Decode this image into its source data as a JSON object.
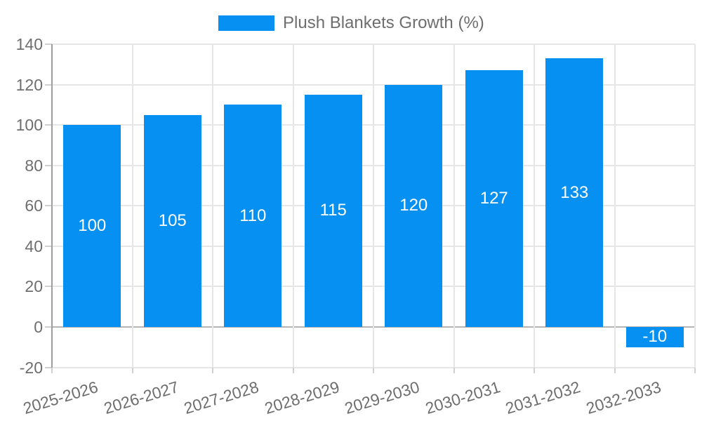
{
  "chart_data": {
    "type": "bar",
    "title": "",
    "legend_label": "Plush Blankets Growth (%)",
    "legend_position": "top",
    "categories": [
      "2025-2026",
      "2026-2027",
      "2027-2028",
      "2028-2029",
      "2029-2030",
      "2030-2031",
      "2031-2032",
      "2032-2033"
    ],
    "series": [
      {
        "name": "Plush Blankets Growth (%)",
        "values": [
          100,
          105,
          110,
          115,
          120,
          127,
          133,
          -10
        ]
      }
    ],
    "bar_value_labels": [
      "100",
      "105",
      "110",
      "115",
      "120",
      "127",
      "133",
      "-10"
    ],
    "ylim": [
      -20,
      140
    ],
    "yticks": [
      140,
      120,
      100,
      80,
      60,
      40,
      20,
      0,
      -20
    ],
    "grid": true,
    "colors": {
      "bar": "#0590f2",
      "grid_line": "#e6e6e6",
      "zero_line": "#b5b5b5",
      "axis_line": "#9e9e9e",
      "tick_mark": "#d0d0d0",
      "tick_text": "#6e6e6e",
      "legend_text": "#6e6e6e",
      "bar_label_text": "#ffffff",
      "background": "#ffffff"
    }
  }
}
